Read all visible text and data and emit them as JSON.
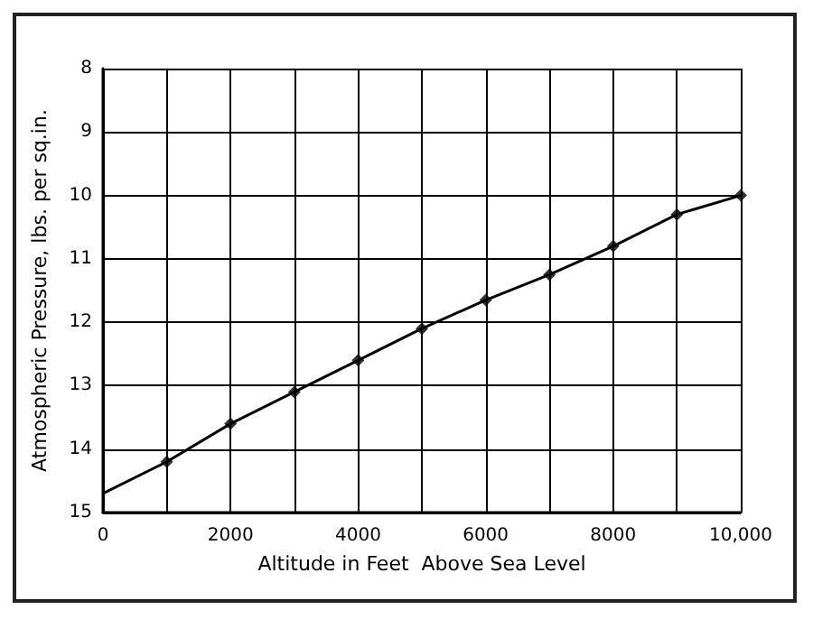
{
  "chart_data": {
    "type": "line",
    "xlabel": "Altitude in Feet  Above Sea Level",
    "ylabel": "Atmospheric Pressure, lbs. per sq.in.",
    "series": [
      {
        "color": "#000000",
        "marker": "none",
        "x": [
          0,
          1000,
          2000,
          3000,
          4000,
          5000,
          6000,
          7000,
          8000,
          9000,
          10000
        ],
        "values": [
          14.7,
          14.2,
          13.6,
          13.1,
          12.6,
          12.1,
          11.65,
          11.25,
          10.8,
          10.3,
          10.0
        ]
      },
      {
        "type": "scatter",
        "color": "#000000",
        "marker": "diamond",
        "x": [
          1000,
          2000,
          3000,
          4000,
          5000,
          6000,
          7000,
          8000,
          9000,
          10000
        ],
        "values": [
          14.2,
          13.6,
          13.1,
          12.6,
          12.1,
          11.65,
          11.25,
          10.8,
          10.3,
          10.0
        ]
      }
    ],
    "xlim": [
      0,
      10000
    ],
    "xticks": [
      0,
      {
        "value": 1000,
        "label": null
      },
      {
        "value": 2000,
        "label": "2000"
      },
      {
        "value": 3000,
        "label": null
      },
      {
        "value": 4000,
        "label": "4000"
      },
      {
        "value": 5000,
        "label": null
      },
      {
        "value": 6000,
        "label": "6000"
      },
      {
        "value": 7000,
        "label": null
      },
      {
        "value": 8000,
        "label": "8000"
      },
      {
        "value": 9000,
        "label": null
      },
      {
        "value": 10000,
        "label": "10,000"
      }
    ],
    "ylim": [
      15,
      8
    ],
    "yticks": [
      8,
      9,
      10,
      11,
      12,
      13,
      14,
      15
    ],
    "grid": true
  }
}
